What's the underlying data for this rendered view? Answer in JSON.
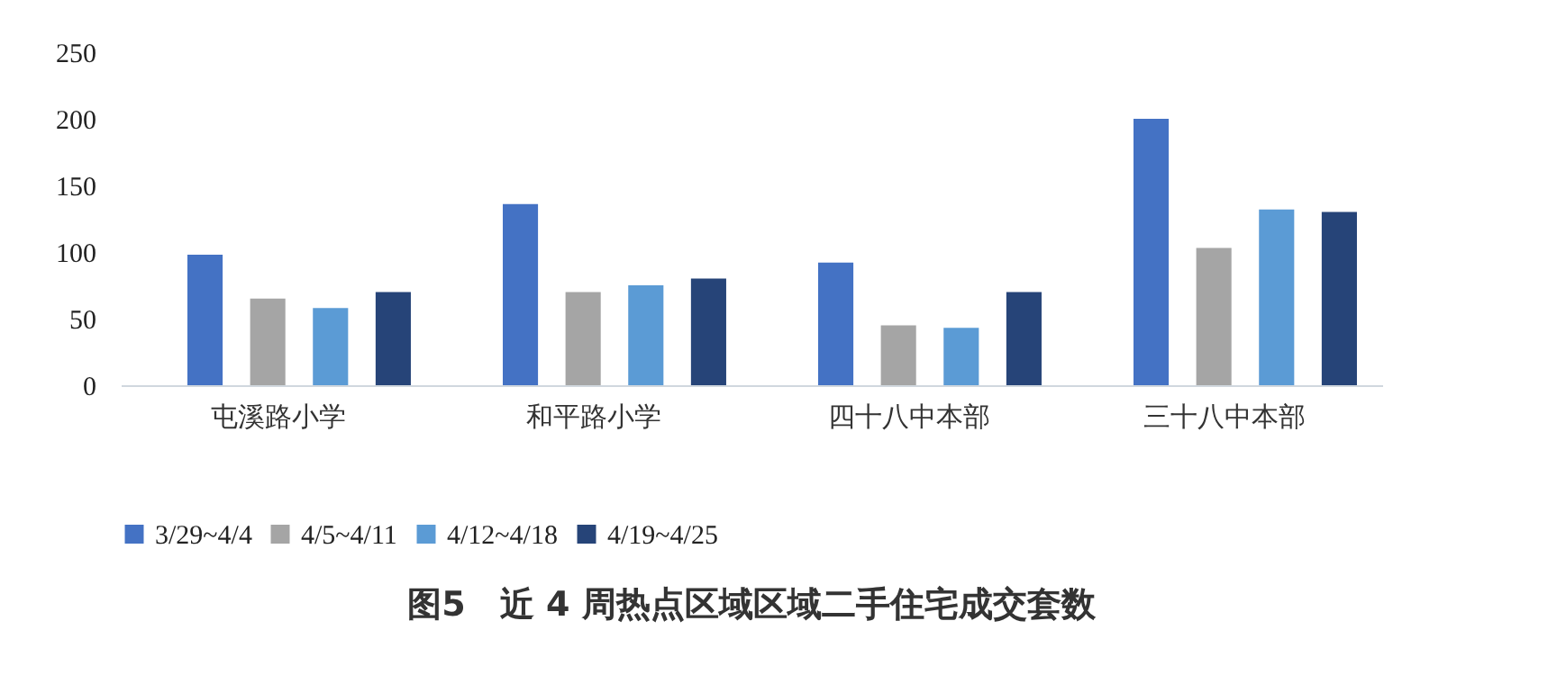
{
  "chart_data": {
    "type": "bar",
    "title": "图5　近 4 周热点区域区域二手住宅成交套数",
    "categories": [
      "屯溪路小学",
      "和平路小学",
      "四十八中本部",
      "三十八中本部"
    ],
    "series": [
      {
        "name": "3/29~4/4",
        "color": "#4472c4",
        "values": [
          98,
          136,
          92,
          200
        ]
      },
      {
        "name": "4/5~4/11",
        "color": "#a5a5a5",
        "values": [
          65,
          70,
          45,
          103
        ]
      },
      {
        "name": "4/12~4/18",
        "color": "#5b9bd5",
        "values": [
          58,
          75,
          43,
          132
        ]
      },
      {
        "name": "4/19~4/25",
        "color": "#264478",
        "values": [
          70,
          80,
          70,
          130
        ]
      }
    ],
    "ylim": [
      0,
      250
    ],
    "yticks": [
      0,
      50,
      100,
      150,
      200,
      250
    ],
    "grid": false,
    "legend": "bottom"
  }
}
